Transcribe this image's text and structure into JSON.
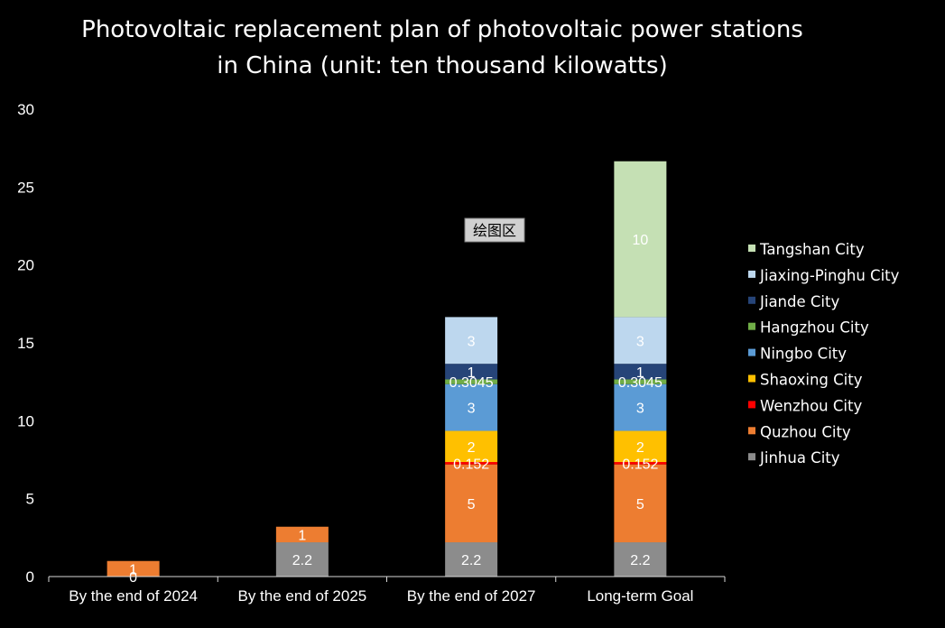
{
  "chart_data": {
    "type": "bar",
    "stacked": true,
    "title": "Photovoltaic replacement plan of photovoltaic power stations in China (unit: ten thousand kilowatts)",
    "title_lines": [
      "Photovoltaic replacement plan of photovoltaic power stations",
      "in China (unit: ten thousand kilowatts)"
    ],
    "xlabel": "",
    "ylabel": "",
    "ylim": [
      0,
      30
    ],
    "yticks": [
      0,
      5,
      10,
      15,
      20,
      25,
      30
    ],
    "categories": [
      "By the end of 2024",
      "By the end of 2025",
      "By the end of 2027",
      "Long-term Goal"
    ],
    "series": [
      {
        "name": "Jinhua City",
        "color": "#8c8c8c",
        "values": [
          0,
          2.2,
          2.2,
          2.2
        ],
        "labels": [
          "0",
          "2.2",
          "2.2",
          "2.2"
        ]
      },
      {
        "name": "Quzhou City",
        "color": "#ed7d31",
        "values": [
          1,
          1,
          5,
          5
        ],
        "labels": [
          "1",
          "1",
          "5",
          "5"
        ]
      },
      {
        "name": "Wenzhou City",
        "color": "#ff0000",
        "values": [
          null,
          null,
          0.152,
          0.152
        ],
        "labels": [
          "",
          "",
          "0.152",
          "0.152"
        ]
      },
      {
        "name": "Shaoxing City",
        "color": "#ffc000",
        "values": [
          null,
          null,
          2,
          2
        ],
        "labels": [
          "",
          "",
          "2",
          "2"
        ]
      },
      {
        "name": "Ningbo City",
        "color": "#5b9bd5",
        "values": [
          null,
          null,
          3,
          3
        ],
        "labels": [
          "",
          "",
          "3",
          "3"
        ]
      },
      {
        "name": "Hangzhou City",
        "color": "#70ad47",
        "values": [
          null,
          null,
          0.3045,
          0.3045
        ],
        "labels": [
          "",
          "",
          "0.3045",
          "0.3045"
        ]
      },
      {
        "name": "Jiande City",
        "color": "#264478",
        "values": [
          null,
          null,
          1,
          1
        ],
        "labels": [
          "",
          "",
          "1",
          "1"
        ]
      },
      {
        "name": "Jiaxing-Pinghu City",
        "color": "#bdd7ee",
        "values": [
          null,
          null,
          3,
          3
        ],
        "labels": [
          "",
          "",
          "3",
          "3"
        ]
      },
      {
        "name": "Tangshan City",
        "color": "#c5e0b4",
        "values": [
          null,
          null,
          null,
          10
        ],
        "labels": [
          "",
          "",
          "",
          "10"
        ]
      }
    ],
    "legend_position": "right",
    "grid": false,
    "plot_area_tag": "绘图区"
  }
}
